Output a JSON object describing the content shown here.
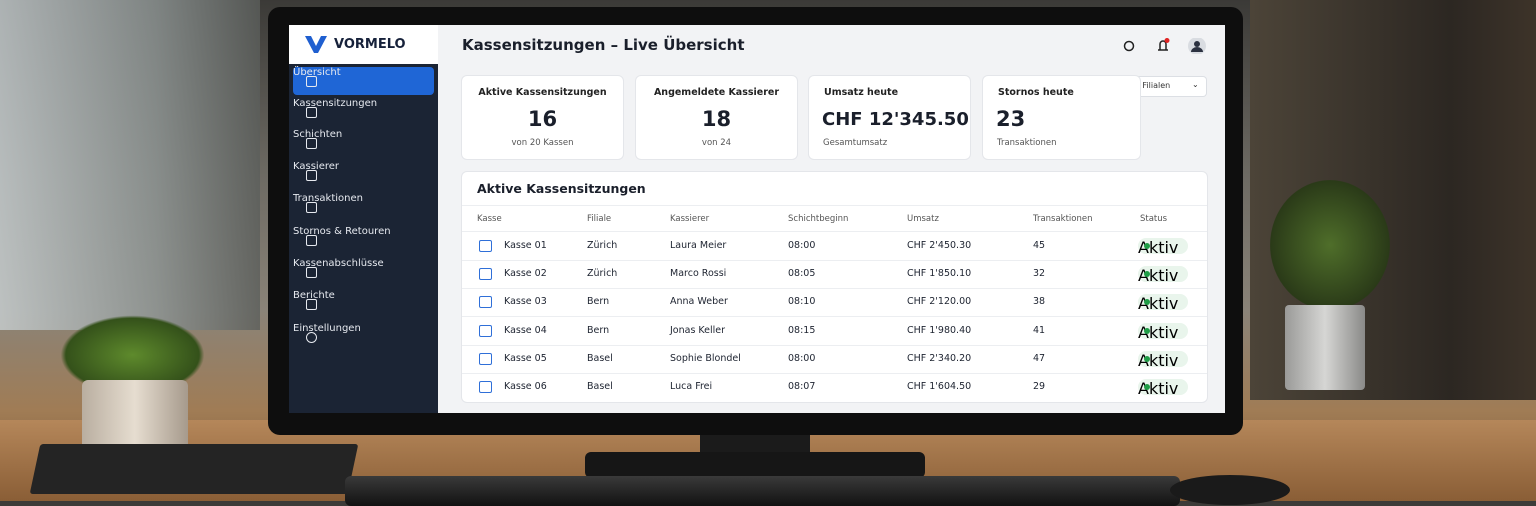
{
  "brand": "VORMELO",
  "nav": [
    "Übersicht",
    "Kassensitzungen",
    "Schichten",
    "Kassierer",
    "Transaktionen",
    "Stornos & Retouren",
    "Kassenabschlüsse",
    "Berichte",
    "Einstellungen"
  ],
  "header": {
    "title": "Kassensitzungen – Live Übersicht"
  },
  "filter": "Alle Filialen",
  "cards": [
    {
      "label": "Aktive Kassensitzungen",
      "value": "16",
      "sub": "von 20 Kassen"
    },
    {
      "label": "Angemeldete Kassierer",
      "value": "18",
      "sub": "von 24"
    },
    {
      "label": "Umsatz heute",
      "value": "CHF 12'345.50",
      "sub": "Gesamtumsatz"
    },
    {
      "label": "Stornos heute",
      "value": "23",
      "sub": "Transaktionen"
    }
  ],
  "table": {
    "title": "Aktive Kassensitzungen",
    "columns": [
      "Kasse",
      "Filiale",
      "Kassierer",
      "Schichtbeginn",
      "Umsatz",
      "Transaktionen",
      "Status"
    ],
    "rows": [
      [
        "Kasse 01",
        "Zürich",
        "Laura Meier",
        "08:00",
        "CHF 2'450.30",
        "45",
        "Aktiv"
      ],
      [
        "Kasse 02",
        "Zürich",
        "Marco Rossi",
        "08:05",
        "CHF 1'850.10",
        "32",
        "Aktiv"
      ],
      [
        "Kasse 03",
        "Bern",
        "Anna Weber",
        "08:10",
        "CHF 2'120.00",
        "38",
        "Aktiv"
      ],
      [
        "Kasse 04",
        "Bern",
        "Jonas Keller",
        "08:15",
        "CHF 1'980.40",
        "41",
        "Aktiv"
      ],
      [
        "Kasse 05",
        "Basel",
        "Sophie Blondel",
        "08:00",
        "CHF 2'340.20",
        "47",
        "Aktiv"
      ],
      [
        "Kasse 06",
        "Basel",
        "Luca Frei",
        "08:07",
        "CHF 1'604.50",
        "29",
        "Aktiv"
      ]
    ]
  }
}
